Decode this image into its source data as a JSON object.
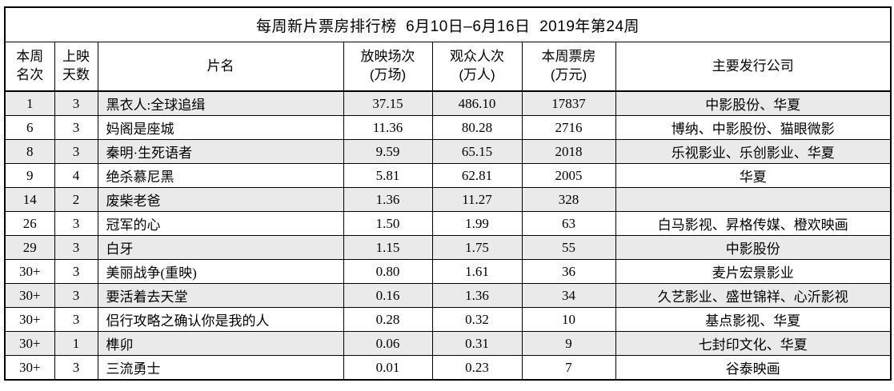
{
  "chart_data": {
    "type": "table",
    "title": "每周新片票房排行榜  6月10日–6月16日  2019年第24周",
    "columns": [
      {
        "label": "本周名次",
        "display": "本周\n名次"
      },
      {
        "label": "上映天数",
        "display": "上映\n天数"
      },
      {
        "label": "片名",
        "display": "片名"
      },
      {
        "label": "放映场次(万场)",
        "display": "放映场次\n(万场)"
      },
      {
        "label": "观众人次(万人)",
        "display": "观众人次\n(万人)"
      },
      {
        "label": "本周票房(万元)",
        "display": "本周票房\n(万元)"
      },
      {
        "label": "主要发行公司",
        "display": "主要发行公司"
      }
    ],
    "rows": [
      {
        "rank": "1",
        "days": "3",
        "title": "黑衣人:全球追缉",
        "screenings": "37.15",
        "admissions": "486.10",
        "box_office": "17837",
        "distributors": "中影股份、华夏"
      },
      {
        "rank": "6",
        "days": "3",
        "title": "妈阁是座城",
        "screenings": "11.36",
        "admissions": "80.28",
        "box_office": "2716",
        "distributors": "博纳、中影股份、猫眼微影"
      },
      {
        "rank": "8",
        "days": "3",
        "title": "秦明·生死语者",
        "screenings": "9.59",
        "admissions": "65.15",
        "box_office": "2018",
        "distributors": "乐视影业、乐创影业、华夏"
      },
      {
        "rank": "9",
        "days": "4",
        "title": "绝杀慕尼黑",
        "screenings": "5.81",
        "admissions": "62.81",
        "box_office": "2005",
        "distributors": "华夏"
      },
      {
        "rank": "14",
        "days": "2",
        "title": "废柴老爸",
        "screenings": "1.36",
        "admissions": "11.27",
        "box_office": "328",
        "distributors": ""
      },
      {
        "rank": "26",
        "days": "3",
        "title": "冠军的心",
        "screenings": "1.50",
        "admissions": "1.99",
        "box_office": "63",
        "distributors": "白马影视、昇格传媒、橙欢映画"
      },
      {
        "rank": "29",
        "days": "3",
        "title": "白牙",
        "screenings": "1.15",
        "admissions": "1.75",
        "box_office": "55",
        "distributors": "中影股份"
      },
      {
        "rank": "30+",
        "days": "3",
        "title": "美丽战争(重映)",
        "screenings": "0.80",
        "admissions": "1.61",
        "box_office": "36",
        "distributors": "麦片宏景影业"
      },
      {
        "rank": "30+",
        "days": "3",
        "title": "要活着去天堂",
        "screenings": "0.16",
        "admissions": "1.36",
        "box_office": "34",
        "distributors": "久艺影业、盛世锦祥、心沂影视"
      },
      {
        "rank": "30+",
        "days": "3",
        "title": "侣行攻略之确认你是我的人",
        "screenings": "0.28",
        "admissions": "0.32",
        "box_office": "10",
        "distributors": "基点影视、华夏"
      },
      {
        "rank": "30+",
        "days": "1",
        "title": "榫卯",
        "screenings": "0.06",
        "admissions": "0.31",
        "box_office": "9",
        "distributors": "七封印文化、华夏"
      },
      {
        "rank": "30+",
        "days": "3",
        "title": "三流勇士",
        "screenings": "0.01",
        "admissions": "0.23",
        "box_office": "7",
        "distributors": "谷泰映画"
      }
    ]
  },
  "colors": {
    "background": "#ffffff",
    "row_shade": "#eaeaea",
    "border": "#000000",
    "text": "#000000"
  }
}
